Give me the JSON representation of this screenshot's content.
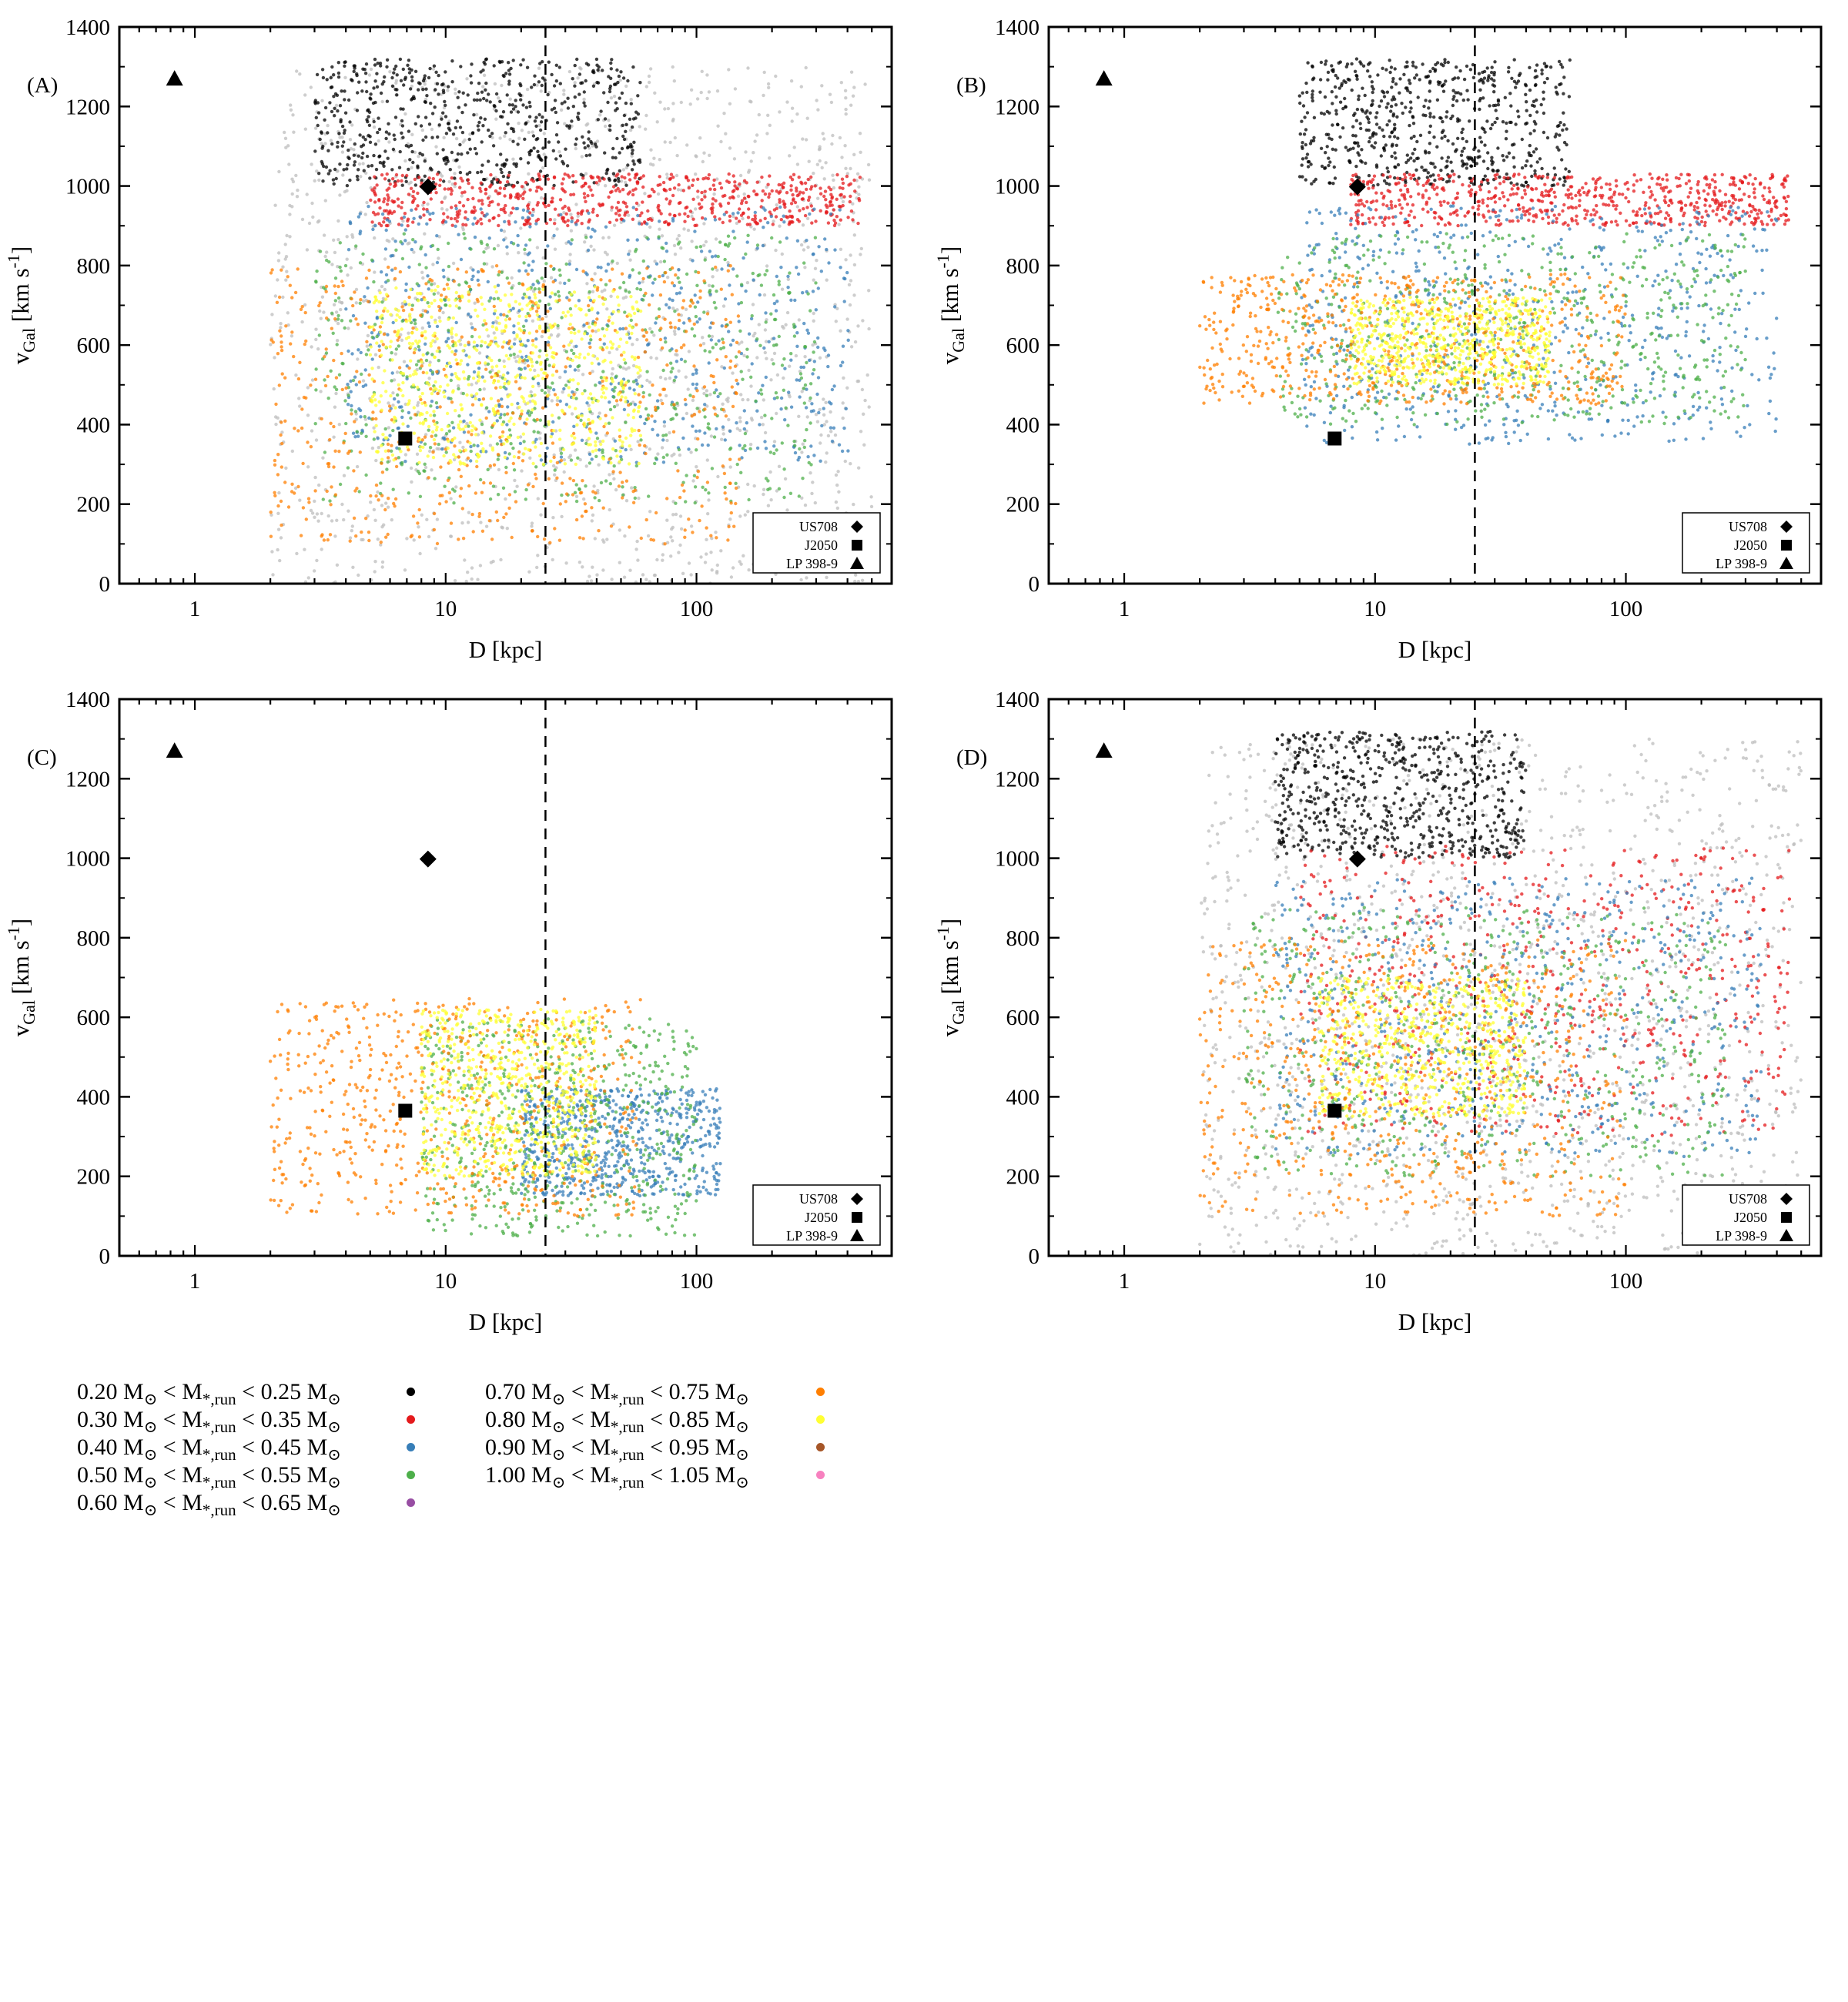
{
  "figure": {
    "x_label": "D [kpc]",
    "y_label_prefix": "v",
    "y_label_sub": "Gal",
    "y_label_suffix": " [km s",
    "y_label_sup": "-1",
    "y_label_end": "]",
    "vertical_line_at_kpc": 25
  },
  "colors": {
    "grey": "#bdbdbd",
    "bin_0_20": "#000000",
    "bin_0_30": "#e41a1c",
    "bin_0_40": "#377eb8",
    "bin_0_50": "#4daf4a",
    "bin_0_60": "#984ea3",
    "bin_0_70": "#ff7f00",
    "bin_0_80": "#ffff33",
    "bin_0_90": "#a65628",
    "bin_1_00": "#f781bf"
  },
  "markers": [
    {
      "name": "US708",
      "shape": "diamond",
      "D_kpc": 8.5,
      "v": 998
    },
    {
      "name": "J2050",
      "shape": "square",
      "D_kpc": 6.9,
      "v": 365
    },
    {
      "name": "LP 398-9",
      "shape": "triangle",
      "D_kpc": 0.83,
      "v": 1270
    }
  ],
  "legend": [
    {
      "lo": "0.20",
      "hi": "0.25",
      "color": "#000000"
    },
    {
      "lo": "0.30",
      "hi": "0.35",
      "color": "#e41a1c"
    },
    {
      "lo": "0.40",
      "hi": "0.45",
      "color": "#377eb8"
    },
    {
      "lo": "0.50",
      "hi": "0.55",
      "color": "#4daf4a"
    },
    {
      "lo": "0.60",
      "hi": "0.65",
      "color": "#984ea3"
    },
    {
      "lo": "0.70",
      "hi": "0.75",
      "color": "#ff7f00"
    },
    {
      "lo": "0.80",
      "hi": "0.85",
      "color": "#ffff33"
    },
    {
      "lo": "0.90",
      "hi": "0.95",
      "color": "#a65628"
    },
    {
      "lo": "1.00",
      "hi": "1.05",
      "color": "#f781bf"
    }
  ],
  "legend_text": {
    "msun": "M",
    "sun_symbol": "⊙",
    "lt": " < ",
    "mstar": "M",
    "mstar_sub": "*,run"
  },
  "chart_data": [
    {
      "type": "scatter",
      "panel_label": "(A)",
      "xscale": "log",
      "xlim": [
        0.5,
        600
      ],
      "ylim": [
        0,
        1400
      ],
      "xticks": [
        1,
        10,
        100
      ],
      "xtick_labels": [
        "1",
        "10",
        "100"
      ],
      "yticks": [
        0,
        200,
        400,
        600,
        800,
        1000,
        1200,
        1400
      ],
      "ytick_labels": [
        "0",
        "200",
        "400",
        "600",
        "800",
        "1000",
        "1200",
        "1400"
      ],
      "xlabel": "D [kpc]",
      "ylabel": "vGal [km s-1]",
      "legend_entries": [
        "US708",
        "J2050",
        "LP 398-9"
      ],
      "series": [
        {
          "name": "unbound (grey)",
          "color": "#bdbdbd",
          "region": {
            "D_min": 2,
            "D_max": 500,
            "v_min": 0,
            "v_max": 1300
          }
        },
        {
          "name": "0.20-0.25",
          "color": "#000000",
          "region": {
            "D_min": 3,
            "D_max": 60,
            "v_min": 1000,
            "v_max": 1320
          }
        },
        {
          "name": "0.30-0.35",
          "color": "#e41a1c",
          "region": {
            "D_min": 5,
            "D_max": 450,
            "v_min": 900,
            "v_max": 1030
          }
        },
        {
          "name": "0.40-0.45",
          "color": "#377eb8",
          "region": {
            "D_min": 4,
            "D_max": 420,
            "v_min": 300,
            "v_max": 950
          }
        },
        {
          "name": "0.50-0.55",
          "color": "#4daf4a",
          "region": {
            "D_min": 3,
            "D_max": 300,
            "v_min": 200,
            "v_max": 880
          }
        },
        {
          "name": "0.70-0.75",
          "color": "#ff7f00",
          "region": {
            "D_min": 2,
            "D_max": 150,
            "v_min": 100,
            "v_max": 800
          }
        },
        {
          "name": "0.80-0.85",
          "color": "#ffff33",
          "region": {
            "D_min": 5,
            "D_max": 60,
            "v_min": 300,
            "v_max": 750
          }
        }
      ]
    },
    {
      "type": "scatter",
      "panel_label": "(B)",
      "xscale": "log",
      "xlim": [
        0.5,
        600
      ],
      "ylim": [
        0,
        1400
      ],
      "xticks": [
        1,
        10,
        100
      ],
      "xtick_labels": [
        "1",
        "10",
        "100"
      ],
      "yticks": [
        0,
        200,
        400,
        600,
        800,
        1000,
        1200,
        1400
      ],
      "ytick_labels": [
        "0",
        "200",
        "400",
        "600",
        "800",
        "1000",
        "1200",
        "1400"
      ],
      "xlabel": "D [kpc]",
      "ylabel": "vGal [km s-1]",
      "legend_entries": [
        "US708",
        "J2050",
        "LP 398-9"
      ],
      "series": [
        {
          "name": "0.20-0.25",
          "color": "#000000",
          "region": {
            "D_min": 5,
            "D_max": 60,
            "v_min": 1000,
            "v_max": 1320
          }
        },
        {
          "name": "0.30-0.35",
          "color": "#e41a1c",
          "region": {
            "D_min": 8,
            "D_max": 450,
            "v_min": 900,
            "v_max": 1030
          }
        },
        {
          "name": "0.40-0.45",
          "color": "#377eb8",
          "region": {
            "D_min": 5,
            "D_max": 400,
            "v_min": 350,
            "v_max": 950
          }
        },
        {
          "name": "0.50-0.55",
          "color": "#4daf4a",
          "region": {
            "D_min": 4,
            "D_max": 300,
            "v_min": 400,
            "v_max": 880
          }
        },
        {
          "name": "0.70-0.75",
          "color": "#ff7f00",
          "region": {
            "D_min": 2,
            "D_max": 100,
            "v_min": 450,
            "v_max": 780
          }
        },
        {
          "name": "0.80-0.85",
          "color": "#ffff33",
          "region": {
            "D_min": 8,
            "D_max": 50,
            "v_min": 500,
            "v_max": 720
          }
        }
      ]
    },
    {
      "type": "scatter",
      "panel_label": "(C)",
      "xscale": "log",
      "xlim": [
        0.5,
        600
      ],
      "ylim": [
        0,
        1400
      ],
      "xticks": [
        1,
        10,
        100
      ],
      "xtick_labels": [
        "1",
        "10",
        "100"
      ],
      "yticks": [
        0,
        200,
        400,
        600,
        800,
        1000,
        1200,
        1400
      ],
      "ytick_labels": [
        "0",
        "200",
        "400",
        "600",
        "800",
        "1000",
        "1200",
        "1400"
      ],
      "xlabel": "D [kpc]",
      "ylabel": "vGal [km s-1]",
      "legend_entries": [
        "US708",
        "J2050",
        "LP 398-9"
      ],
      "series": [
        {
          "name": "0.40-0.45",
          "color": "#377eb8",
          "region": {
            "D_min": 20,
            "D_max": 125,
            "v_min": 150,
            "v_max": 420
          }
        },
        {
          "name": "0.50-0.55",
          "color": "#4daf4a",
          "region": {
            "D_min": 8,
            "D_max": 100,
            "v_min": 50,
            "v_max": 600
          }
        },
        {
          "name": "0.70-0.75",
          "color": "#ff7f00",
          "region": {
            "D_min": 2,
            "D_max": 60,
            "v_min": 100,
            "v_max": 650
          }
        },
        {
          "name": "0.80-0.85",
          "color": "#ffff33",
          "region": {
            "D_min": 8,
            "D_max": 40,
            "v_min": 200,
            "v_max": 620
          }
        }
      ]
    },
    {
      "type": "scatter",
      "panel_label": "(D)",
      "xscale": "log",
      "xlim": [
        0.5,
        600
      ],
      "ylim": [
        0,
        1400
      ],
      "xticks": [
        1,
        10,
        100
      ],
      "xtick_labels": [
        "1",
        "10",
        "100"
      ],
      "yticks": [
        0,
        200,
        400,
        600,
        800,
        1000,
        1200,
        1400
      ],
      "ytick_labels": [
        "0",
        "200",
        "400",
        "600",
        "800",
        "1000",
        "1200",
        "1400"
      ],
      "xlabel": "D [kpc]",
      "ylabel": "vGal [km s-1]",
      "legend_entries": [
        "US708",
        "J2050",
        "LP 398-9"
      ],
      "series": [
        {
          "name": "unbound (grey)",
          "color": "#bdbdbd",
          "region": {
            "D_min": 2,
            "D_max": 500,
            "v_min": 0,
            "v_max": 1300
          }
        },
        {
          "name": "0.20-0.25",
          "color": "#000000",
          "region": {
            "D_min": 4,
            "D_max": 40,
            "v_min": 1000,
            "v_max": 1320
          }
        },
        {
          "name": "0.30-0.35",
          "color": "#e41a1c",
          "region": {
            "D_min": 5,
            "D_max": 450,
            "v_min": 300,
            "v_max": 1030
          }
        },
        {
          "name": "0.40-0.45",
          "color": "#377eb8",
          "region": {
            "D_min": 4,
            "D_max": 350,
            "v_min": 250,
            "v_max": 950
          }
        },
        {
          "name": "0.50-0.55",
          "color": "#4daf4a",
          "region": {
            "D_min": 3,
            "D_max": 250,
            "v_min": 200,
            "v_max": 880
          }
        },
        {
          "name": "0.70-0.75",
          "color": "#ff7f00",
          "region": {
            "D_min": 2,
            "D_max": 100,
            "v_min": 100,
            "v_max": 800
          }
        },
        {
          "name": "0.80-0.85",
          "color": "#ffff33",
          "region": {
            "D_min": 6,
            "D_max": 40,
            "v_min": 350,
            "v_max": 700
          }
        }
      ]
    }
  ]
}
